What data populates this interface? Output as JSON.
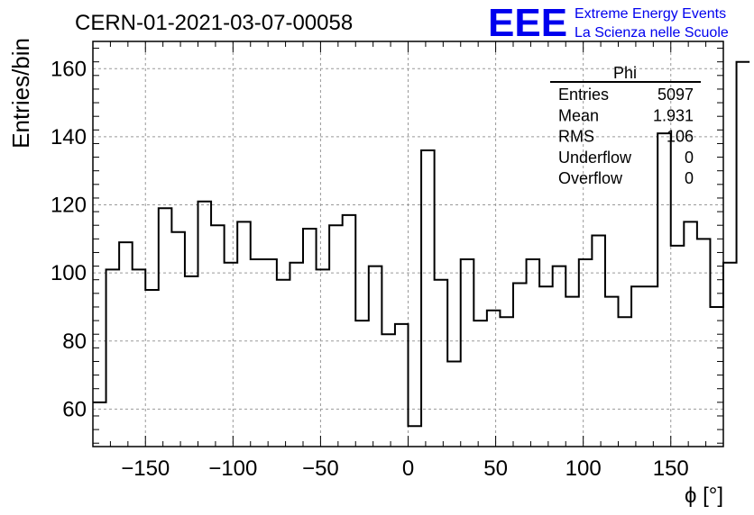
{
  "header": {
    "title": "CERN-01-2021-03-07-00058",
    "logo_text": "EEE",
    "logo_line1": "Extreme Energy Events",
    "logo_line2": "La Scienza nelle Scuole",
    "logo_color": "#0000ee"
  },
  "stats_box": {
    "name": "Phi",
    "rows": [
      {
        "label": "Entries",
        "value": "5097"
      },
      {
        "label": "Mean",
        "value": "1.931"
      },
      {
        "label": "RMS",
        "value": "106"
      },
      {
        "label": "Underflow",
        "value": "0"
      },
      {
        "label": "Overflow",
        "value": "0"
      }
    ]
  },
  "chart_data": {
    "type": "histogram",
    "xlabel": "ϕ [°]",
    "ylabel": "Entries/bin",
    "xlim": [
      -180,
      180
    ],
    "ylim": [
      49,
      168
    ],
    "xticks": [
      -150,
      -100,
      -50,
      0,
      50,
      100,
      150
    ],
    "yticks": [
      60,
      80,
      100,
      120,
      140,
      160
    ],
    "xtick_labels": [
      "−150",
      "−100",
      "−50",
      "0",
      "50",
      "100",
      "150"
    ],
    "ytick_labels": [
      "60",
      "80",
      "100",
      "120",
      "140",
      "160"
    ],
    "grid": true,
    "bin_edges_start": -180,
    "bin_width": 7.5,
    "values": [
      62,
      101,
      109,
      101,
      95,
      119,
      112,
      99,
      121,
      114,
      103,
      115,
      104,
      104,
      98,
      103,
      113,
      101,
      114,
      117,
      86,
      102,
      82,
      85,
      55,
      136,
      98,
      74,
      104,
      86,
      89,
      87,
      97,
      104,
      96,
      102,
      93,
      104,
      111,
      93,
      87,
      96,
      96,
      141,
      108,
      115,
      110,
      90,
      103,
      162
    ]
  }
}
